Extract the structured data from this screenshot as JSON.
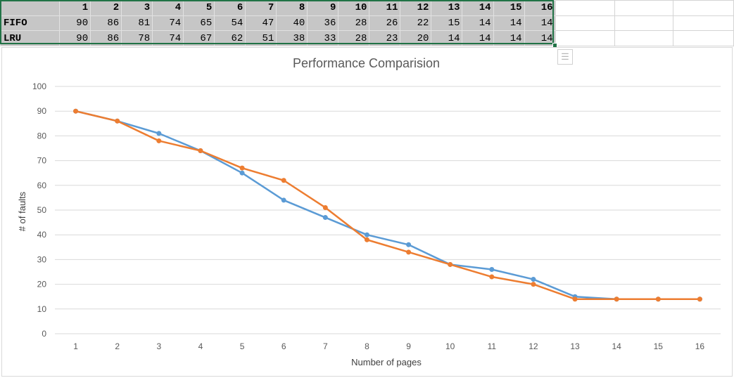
{
  "sheet": {
    "header_row": [
      "1",
      "2",
      "3",
      "4",
      "5",
      "6",
      "7",
      "8",
      "9",
      "10",
      "11",
      "12",
      "13",
      "14",
      "15",
      "16"
    ],
    "rows": [
      {
        "name": "FIFO",
        "values": [
          90,
          86,
          81,
          74,
          65,
          54,
          47,
          40,
          36,
          28,
          26,
          22,
          15,
          14,
          14,
          14
        ]
      },
      {
        "name": "LRU",
        "values": [
          90,
          86,
          78,
          74,
          67,
          62,
          51,
          38,
          33,
          28,
          23,
          20,
          14,
          14,
          14,
          14
        ]
      }
    ]
  },
  "chart_data": {
    "type": "line",
    "title": "Performance Comparision",
    "xlabel": "Number of pages",
    "ylabel": "# of faults",
    "x": [
      1,
      2,
      3,
      4,
      5,
      6,
      7,
      8,
      9,
      10,
      11,
      12,
      13,
      14,
      15,
      16
    ],
    "ylim": [
      0,
      100
    ],
    "yticks": [
      0,
      10,
      20,
      30,
      40,
      50,
      60,
      70,
      80,
      90,
      100
    ],
    "grid": true,
    "legend": "none",
    "series": [
      {
        "values": [
          90,
          86,
          81,
          74,
          65,
          54,
          47,
          40,
          36,
          28,
          26,
          22,
          15,
          14,
          14,
          14
        ],
        "color": "#5b9bd5"
      },
      {
        "values": [
          90,
          86,
          78,
          74,
          67,
          62,
          51,
          38,
          33,
          28,
          23,
          20,
          14,
          14,
          14,
          14
        ],
        "color": "#ed7d31"
      }
    ]
  },
  "icons": {
    "chart_format": "chart-format-icon"
  }
}
